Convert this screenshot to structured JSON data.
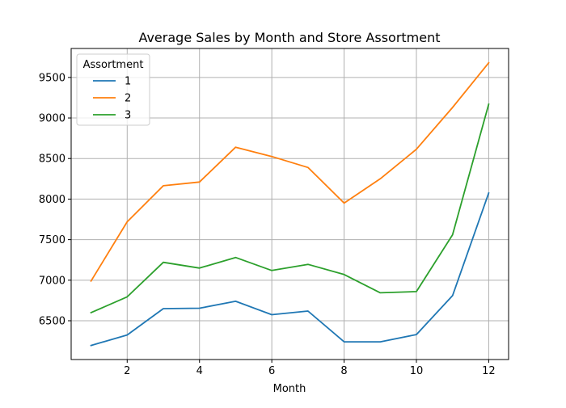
{
  "chart_data": {
    "type": "line",
    "title": "Average Sales by Month and Store Assortment",
    "xlabel": "Month",
    "ylabel": "",
    "x": [
      1,
      2,
      3,
      4,
      5,
      6,
      7,
      8,
      9,
      10,
      11,
      12
    ],
    "xlim": [
      0.45,
      12.55
    ],
    "ylim": [
      6022,
      9857
    ],
    "xticks": [
      2,
      4,
      6,
      8,
      10,
      12
    ],
    "yticks": [
      6500,
      7000,
      7500,
      8000,
      8500,
      9000,
      9500
    ],
    "grid": true,
    "legend": {
      "title": "Assortment",
      "placement": "top-left"
    },
    "series": [
      {
        "name": "1",
        "color": "#1f77b4",
        "values": [
          6195,
          6325,
          6650,
          6655,
          6740,
          6575,
          6620,
          6240,
          6240,
          6330,
          6810,
          8075
        ]
      },
      {
        "name": "2",
        "color": "#ff7f0e",
        "values": [
          6990,
          7720,
          8165,
          8210,
          8640,
          8525,
          8390,
          7950,
          8250,
          8615,
          9130,
          9680
        ]
      },
      {
        "name": "3",
        "color": "#2ca02c",
        "values": [
          6600,
          6795,
          7220,
          7150,
          7280,
          7120,
          7195,
          7070,
          6845,
          6860,
          7560,
          9170
        ]
      }
    ]
  }
}
